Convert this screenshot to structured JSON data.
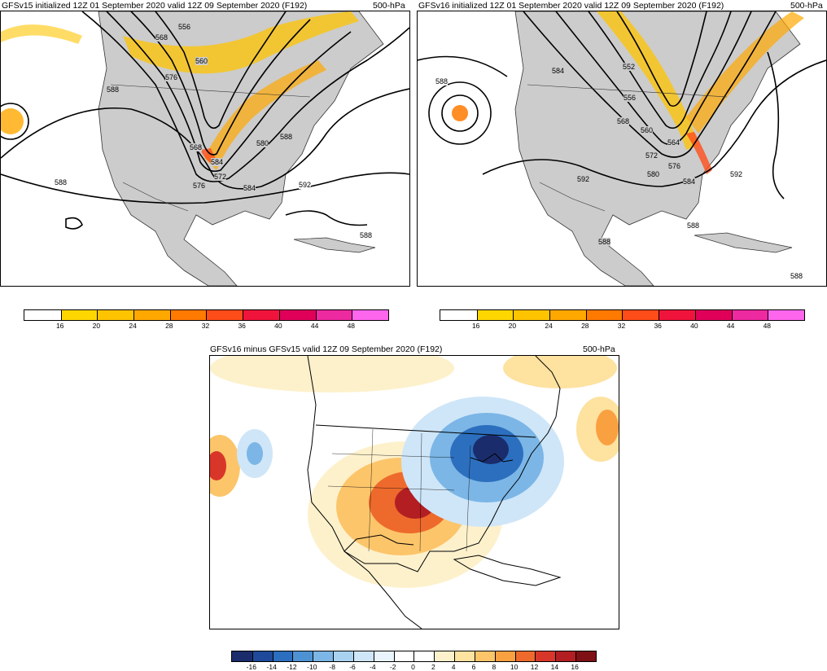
{
  "panels": {
    "top_left": {
      "title": "GFSv15 initialized 12Z 01 September 2020 valid 12Z 09 September 2020 (F192)",
      "level": "500-hPa",
      "contour_labels": [
        "556",
        "568",
        "560",
        "576",
        "588",
        "568",
        "580",
        "584",
        "588",
        "572",
        "576",
        "584",
        "592",
        "588",
        "588"
      ]
    },
    "top_right": {
      "title": "GFSv16 initialized 12Z 01 September 2020 valid 12Z 09 September 2020 (F192)",
      "level": "500-hPa",
      "contour_labels": [
        "588",
        "584",
        "552",
        "556",
        "568",
        "560",
        "564",
        "572",
        "576",
        "580",
        "584",
        "592",
        "592",
        "588",
        "588",
        "588"
      ]
    },
    "bottom": {
      "title": "GFSv16 minus GFSv15 valid 12Z 09 September 2020 (F192)",
      "level": "500-hPa"
    }
  },
  "colorbar_top": {
    "ticks": [
      "16",
      "20",
      "24",
      "28",
      "32",
      "36",
      "40",
      "44",
      "48"
    ],
    "colors": [
      "#ffffff",
      "#ffd700",
      "#ffc400",
      "#ffa800",
      "#ff7a00",
      "#ff4d1a",
      "#f0143c",
      "#e0005a",
      "#ee2aa0",
      "#ff66ee"
    ]
  },
  "colorbar_bottom": {
    "ticks": [
      "-16",
      "-14",
      "-12",
      "-10",
      "-8",
      "-6",
      "-4",
      "-2",
      "0",
      "2",
      "4",
      "6",
      "8",
      "10",
      "12",
      "14",
      "16"
    ],
    "colors": [
      "#1a2c6b",
      "#1f4a9a",
      "#2c6fbe",
      "#4d93d4",
      "#7bb6e6",
      "#a9d2f0",
      "#cfe6f8",
      "#eaf4fc",
      "#ffffff",
      "#ffffff",
      "#fdf1cc",
      "#fde2a0",
      "#fcc56a",
      "#f9a040",
      "#ee6a2c",
      "#d9362a",
      "#b31e22",
      "#7f1016"
    ]
  }
}
